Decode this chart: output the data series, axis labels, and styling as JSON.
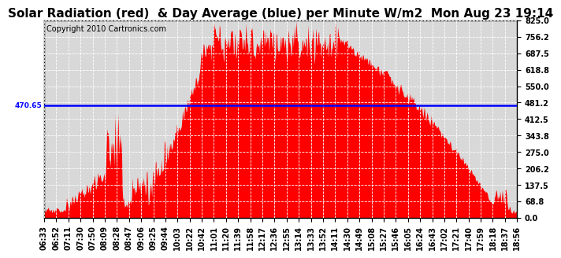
{
  "title": "Solar Radiation (red)  & Day Average (blue) per Minute W/m2  Mon Aug 23 19:14",
  "copyright": "Copyright 2010 Cartronics.com",
  "bg_color": "#ffffff",
  "plot_bg_color": "#d8d8d8",
  "grid_color": "#ffffff",
  "fill_color": "#ff0000",
  "line_color": "#0000ff",
  "avg_value": 470.65,
  "ylim": [
    0,
    825.0
  ],
  "yticks": [
    0.0,
    68.8,
    137.5,
    206.2,
    275.0,
    343.8,
    412.5,
    481.2,
    550.0,
    618.8,
    687.5,
    756.2,
    825.0
  ],
  "xtick_labels": [
    "06:33",
    "06:52",
    "07:11",
    "07:30",
    "07:50",
    "08:09",
    "08:28",
    "08:47",
    "09:06",
    "09:25",
    "09:44",
    "10:03",
    "10:22",
    "10:42",
    "11:01",
    "11:20",
    "11:39",
    "11:58",
    "12:17",
    "12:36",
    "12:55",
    "13:14",
    "13:33",
    "13:52",
    "14:11",
    "14:30",
    "14:49",
    "15:08",
    "15:27",
    "15:46",
    "16:05",
    "16:24",
    "16:43",
    "17:02",
    "17:21",
    "17:40",
    "17:59",
    "18:18",
    "18:37",
    "18:56"
  ],
  "title_fontsize": 11,
  "tick_fontsize": 7,
  "copyright_fontsize": 7
}
